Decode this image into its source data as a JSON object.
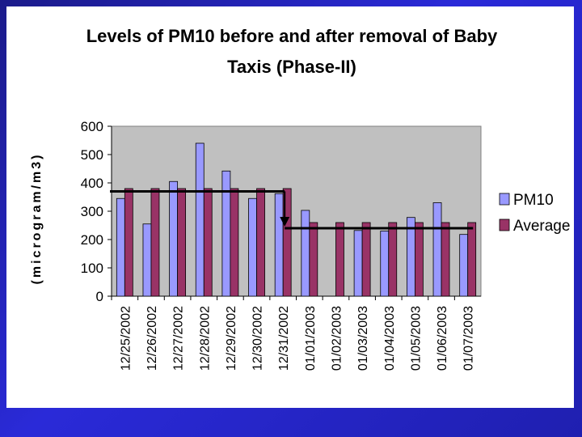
{
  "chart_data": {
    "type": "bar",
    "title_lines": [
      "Levels of PM10 before and after removal of Baby",
      "Taxis (Phase-II)"
    ],
    "ylabel": "(microgram/m3)",
    "xlabel": "",
    "ylim": [
      0,
      600
    ],
    "y_ticks": [
      0,
      100,
      200,
      300,
      400,
      500,
      600
    ],
    "grid": false,
    "legend_position": "right",
    "categories": [
      "12/25/2002",
      "12/26/2002",
      "12/27/2002",
      "12/28/2002",
      "12/29/2002",
      "12/30/2002",
      "12/31/2002",
      "01/01/2003",
      "01/02/2003",
      "01/03/2003",
      "01/04/2003",
      "01/05/2003",
      "01/06/2003",
      "01/07/2003"
    ],
    "series": [
      {
        "name": "PM10",
        "color": "#9999ff",
        "values": [
          345,
          255,
          405,
          540,
          442,
          345,
          362,
          303,
          0,
          232,
          230,
          278,
          330,
          218
        ]
      },
      {
        "name": "Average",
        "color": "#993366",
        "values": [
          380,
          380,
          380,
          380,
          380,
          380,
          380,
          260,
          260,
          260,
          260,
          260,
          260,
          260
        ]
      }
    ],
    "annotations": {
      "before_line_level": 370,
      "after_line_level": 240,
      "line_color": "#000000"
    },
    "plot_background": "#c0c0c0"
  }
}
